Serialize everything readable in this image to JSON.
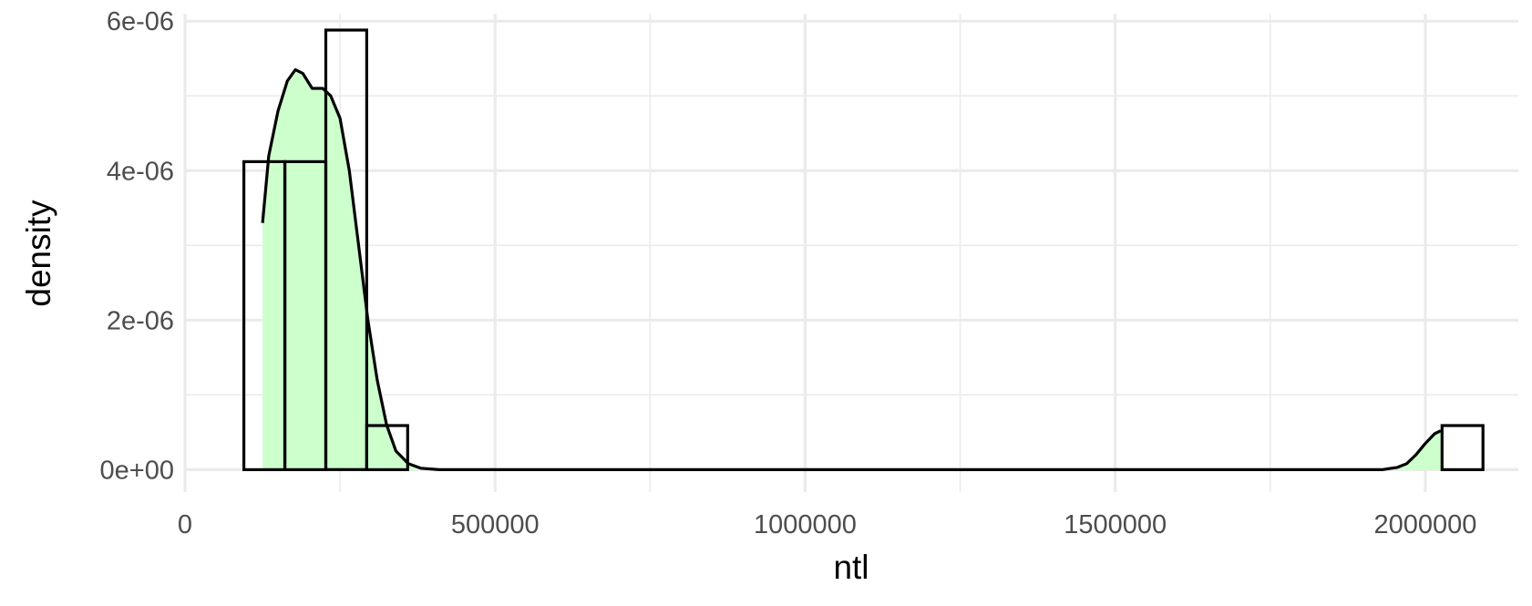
{
  "chart_data": {
    "type": "histogram",
    "xlabel": "ntl",
    "ylabel": "density",
    "xlim": [
      0,
      2150000
    ],
    "ylim": [
      -3e-07,
      6.1e-06
    ],
    "x_ticks": [
      {
        "value": 0,
        "label": "0"
      },
      {
        "value": 500000,
        "label": "500000"
      },
      {
        "value": 1000000,
        "label": "1000000"
      },
      {
        "value": 1500000,
        "label": "1500000"
      },
      {
        "value": 2000000,
        "label": "2000000"
      }
    ],
    "x_minor": [
      250000,
      750000,
      1250000,
      1750000
    ],
    "y_ticks": [
      {
        "value": 0,
        "label": "0e+00"
      },
      {
        "value": 2e-06,
        "label": "2e-06"
      },
      {
        "value": 4e-06,
        "label": "4e-06"
      },
      {
        "value": 6e-06,
        "label": "6e-06"
      }
    ],
    "y_minor": [
      1e-06,
      3e-06,
      5e-06
    ],
    "grid": true,
    "bins": [
      {
        "x0": 95000,
        "x1": 161000,
        "density": 4.12e-06
      },
      {
        "x0": 161000,
        "x1": 227000,
        "density": 4.12e-06
      },
      {
        "x0": 227000,
        "x1": 293000,
        "density": 5.88e-06
      },
      {
        "x0": 293000,
        "x1": 359000,
        "density": 5.9e-07
      },
      {
        "x0": 359000,
        "x1": 1961000,
        "density": 0
      },
      {
        "x0": 1961000,
        "x1": 2027000,
        "density": 0
      },
      {
        "x0": 2027000,
        "x1": 2093000,
        "density": 5.9e-07
      }
    ],
    "density_fill_color": "#ccffcc",
    "density_curve": [
      {
        "x": 125000,
        "y": 3.3e-06
      },
      {
        "x": 135000,
        "y": 4.2e-06
      },
      {
        "x": 150000,
        "y": 4.8e-06
      },
      {
        "x": 165000,
        "y": 5.2e-06
      },
      {
        "x": 178000,
        "y": 5.35e-06
      },
      {
        "x": 190000,
        "y": 5.3e-06
      },
      {
        "x": 205000,
        "y": 5.1e-06
      },
      {
        "x": 222000,
        "y": 5.1e-06
      },
      {
        "x": 235000,
        "y": 5e-06
      },
      {
        "x": 250000,
        "y": 4.7e-06
      },
      {
        "x": 265000,
        "y": 4e-06
      },
      {
        "x": 280000,
        "y": 3e-06
      },
      {
        "x": 295000,
        "y": 2e-06
      },
      {
        "x": 310000,
        "y": 1.2e-06
      },
      {
        "x": 325000,
        "y": 6e-07
      },
      {
        "x": 340000,
        "y": 2.5e-07
      },
      {
        "x": 360000,
        "y": 8e-08
      },
      {
        "x": 380000,
        "y": 2e-08
      },
      {
        "x": 410000,
        "y": 0.0
      },
      {
        "x": 1930000,
        "y": 0.0
      },
      {
        "x": 1955000,
        "y": 3e-08
      },
      {
        "x": 1970000,
        "y": 8e-08
      },
      {
        "x": 1985000,
        "y": 2e-07
      },
      {
        "x": 2000000,
        "y": 3.5e-07
      },
      {
        "x": 2015000,
        "y": 4.8e-07
      },
      {
        "x": 2025000,
        "y": 5.2e-07
      }
    ]
  }
}
